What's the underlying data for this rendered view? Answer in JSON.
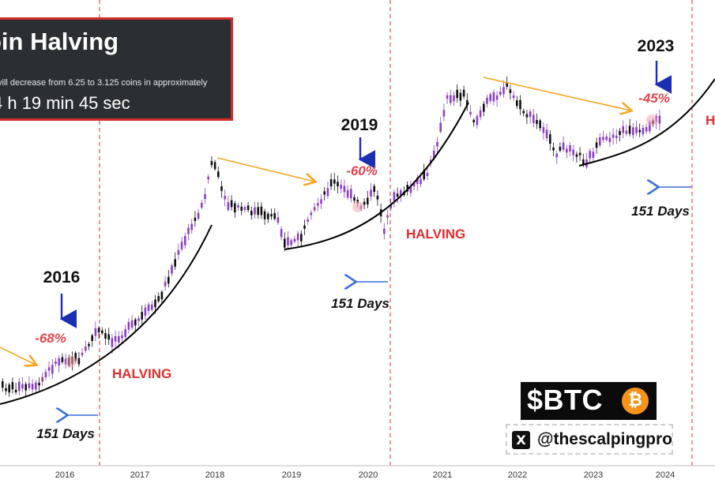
{
  "widget": {
    "title": "oin Halving",
    "description": "vill decrease from 6.25 to 3.125 coins in approximately",
    "timer": "4 h 19 min 45 sec"
  },
  "badge": {
    "ticker": "$BTC",
    "coin_symbol": "₿"
  },
  "handle": {
    "text": "@thescalpingpro",
    "icon": "x-logo-icon"
  },
  "colors": {
    "candle_up": "#8a3fc4",
    "candle_down": "#111111",
    "trend_arrow": "#f5a623",
    "halving_line": "#d9534f",
    "days_arrow": "#3a6fd8",
    "cycle_arrow": "#1b2fb5",
    "percent": "#e0454f",
    "halving_text": "#e02d2d"
  },
  "chart_data": {
    "type": "candlestick",
    "title": "",
    "xlabel": "",
    "ylabel": "",
    "scale": "log",
    "x_ticks": [
      "2016",
      "2017",
      "2018",
      "2019",
      "2020",
      "2021",
      "2022",
      "2023",
      "2024"
    ],
    "halving_dates": [
      "2016-07",
      "2020-05",
      "2024-04"
    ],
    "halving_label": "HALVING",
    "days_label": "151 Days",
    "cycles": [
      {
        "year_label": "2016",
        "drawdown": "-68%"
      },
      {
        "year_label": "2019",
        "drawdown": "-60%"
      },
      {
        "year_label": "2023",
        "drawdown": "-45%"
      }
    ],
    "series": [
      {
        "x": [
          2015.2,
          2015.4,
          2015.6,
          2015.8,
          2016.0,
          2016.2,
          2016.4,
          2016.6,
          2016.8,
          2017.0,
          2017.2,
          2017.4,
          2017.6,
          2017.8,
          2018.0,
          2018.2,
          2018.4,
          2018.6,
          2018.8,
          2019.0,
          2019.2,
          2019.4,
          2019.6,
          2019.8,
          2020.0,
          2020.2,
          2020.4,
          2020.6,
          2020.8,
          2021.0,
          2021.2,
          2021.4,
          2021.6,
          2021.8,
          2022.0,
          2022.2,
          2022.4,
          2022.6,
          2022.8,
          2023.0,
          2023.2,
          2023.4,
          2023.6,
          2023.8
        ],
        "y": [
          0.09,
          0.13,
          0.16,
          0.19,
          0.27,
          0.34,
          0.43,
          0.51,
          0.48,
          0.57,
          0.66,
          0.75,
          0.86,
          1.0,
          0.81,
          0.78,
          0.76,
          0.71,
          0.67,
          0.61,
          0.66,
          0.76,
          0.79,
          0.77,
          0.72,
          0.72,
          0.76,
          0.81,
          0.92,
          1.0,
          1.07,
          1.11,
          1.13,
          1.12,
          1.06,
          1.0,
          0.96,
          0.93,
          0.91,
          0.94,
          0.98,
          0.99,
          1.01,
          1.03
        ]
      }
    ]
  }
}
